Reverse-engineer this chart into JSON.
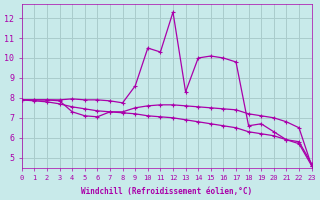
{
  "xlabel": "Windchill (Refroidissement éolien,°C)",
  "xlim": [
    0,
    23
  ],
  "ylim": [
    4.5,
    12.7
  ],
  "yticks": [
    5,
    6,
    7,
    8,
    9,
    10,
    11,
    12
  ],
  "xticks": [
    0,
    1,
    2,
    3,
    4,
    5,
    6,
    7,
    8,
    9,
    10,
    11,
    12,
    13,
    14,
    15,
    16,
    17,
    18,
    19,
    20,
    21,
    22,
    23
  ],
  "bg_color": "#c8eaea",
  "line_color": "#aa00aa",
  "grid_color": "#aacccc",
  "line1_x": [
    0,
    1,
    2,
    3,
    4,
    5,
    6,
    7,
    8,
    9,
    10,
    11,
    12,
    13,
    14,
    15,
    16,
    17,
    18,
    19,
    20,
    21,
    22,
    23
  ],
  "line1_y": [
    7.9,
    7.9,
    7.9,
    7.9,
    7.95,
    7.9,
    7.9,
    7.85,
    7.75,
    8.6,
    10.5,
    10.3,
    12.3,
    8.3,
    10.0,
    10.1,
    10.0,
    9.8,
    6.6,
    6.7,
    6.3,
    5.9,
    5.8,
    4.7
  ],
  "line2_x": [
    0,
    1,
    2,
    3,
    4,
    5,
    6,
    7,
    8,
    9,
    10,
    11,
    12,
    13,
    14,
    15,
    16,
    17,
    18,
    19,
    20,
    21,
    22,
    23
  ],
  "line2_y": [
    7.9,
    7.9,
    7.9,
    7.85,
    7.3,
    7.1,
    7.05,
    7.3,
    7.3,
    7.5,
    7.6,
    7.65,
    7.65,
    7.6,
    7.55,
    7.5,
    7.45,
    7.4,
    7.2,
    7.1,
    7.0,
    6.8,
    6.5,
    4.6
  ],
  "line3_x": [
    0,
    1,
    2,
    3,
    4,
    5,
    6,
    7,
    8,
    9,
    10,
    11,
    12,
    13,
    14,
    15,
    16,
    17,
    18,
    19,
    20,
    21,
    22,
    23
  ],
  "line3_y": [
    7.9,
    7.85,
    7.8,
    7.7,
    7.55,
    7.45,
    7.35,
    7.3,
    7.25,
    7.2,
    7.1,
    7.05,
    7.0,
    6.9,
    6.8,
    6.7,
    6.6,
    6.5,
    6.3,
    6.2,
    6.1,
    5.9,
    5.7,
    4.6
  ]
}
